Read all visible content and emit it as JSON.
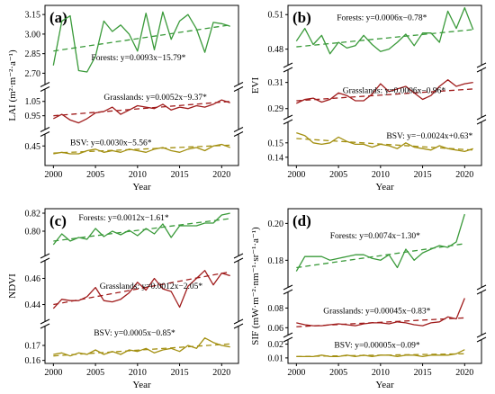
{
  "colors": {
    "forests": "#3a9a3a",
    "grasslands": "#a01c1c",
    "bsv": "#a38f10"
  },
  "chart_data": [
    {
      "type": "line",
      "panel": "(a)",
      "xlabel": "Year",
      "ylabel": "LAI (m²·m⁻²·a⁻¹)",
      "x": [
        2000,
        2001,
        2002,
        2003,
        2004,
        2005,
        2006,
        2007,
        2008,
        2009,
        2010,
        2011,
        2012,
        2013,
        2014,
        2015,
        2016,
        2017,
        2018,
        2019,
        2020,
        2021
      ],
      "xticks": [
        "2000",
        "2005",
        "2010",
        "2015",
        "2020"
      ],
      "segments": [
        {
          "ylim": [
            2.62,
            3.22
          ],
          "yticks": [
            "2.70",
            "2.85",
            "3.00",
            "3.15"
          ]
        },
        {
          "ylim": [
            0.86,
            1.13
          ],
          "yticks": [
            "0.95",
            "1.05"
          ]
        },
        {
          "ylim": [
            0.36,
            0.52
          ],
          "yticks": [
            "0.45"
          ]
        }
      ],
      "series": [
        {
          "name": "Forests",
          "segment": 0,
          "color_key": "forests",
          "equation": "Forests: y=0.0093x−15.79*",
          "label_year": 2004.5,
          "label_value": 2.8,
          "values": [
            2.76,
            3.1,
            3.14,
            2.72,
            2.71,
            2.83,
            3.1,
            3.02,
            3.07,
            3.0,
            2.87,
            3.16,
            2.88,
            3.17,
            2.96,
            3.1,
            3.15,
            3.04,
            2.86,
            3.09,
            3.08,
            3.06
          ],
          "trend": [
            2.87,
            3.07
          ]
        },
        {
          "name": "Grasslands",
          "segment": 1,
          "color_key": "grasslands",
          "equation": "Grasslands: y=0.0052x−9.37*",
          "label_year": 2006,
          "label_value": 1.06,
          "values": [
            0.93,
            0.96,
            0.92,
            0.9,
            0.93,
            0.97,
            0.98,
            1.01,
            0.96,
            0.99,
            1.02,
            1.01,
            1.0,
            1.03,
            0.99,
            1.01,
            1.0,
            1.02,
            1.01,
            1.03,
            1.06,
            1.04
          ],
          "trend": [
            0.95,
            1.05
          ]
        },
        {
          "name": "BSV",
          "segment": 2,
          "color_key": "bsv",
          "equation": "BSV: y=0.0030x−5.56*",
          "label_year": 2002,
          "label_value": 0.455,
          "values": [
            0.4,
            0.41,
            0.4,
            0.4,
            0.42,
            0.43,
            0.41,
            0.42,
            0.41,
            0.43,
            0.42,
            0.41,
            0.43,
            0.44,
            0.42,
            0.41,
            0.43,
            0.44,
            0.42,
            0.45,
            0.46,
            0.44
          ],
          "trend": [
            0.405,
            0.455
          ]
        }
      ]
    },
    {
      "type": "line",
      "panel": "(b)",
      "xlabel": "Year",
      "ylabel": "EVI",
      "x": [
        2000,
        2001,
        2002,
        2003,
        2004,
        2005,
        2006,
        2007,
        2008,
        2009,
        2010,
        2011,
        2012,
        2013,
        2014,
        2015,
        2016,
        2017,
        2018,
        2019,
        2020,
        2021
      ],
      "xticks": [
        "2000",
        "2005",
        "2010",
        "2015",
        "2020"
      ],
      "segments": [
        {
          "ylim": [
            0.468,
            0.518
          ],
          "yticks": [
            "0.48",
            "0.51"
          ]
        },
        {
          "ylim": [
            0.285,
            0.318
          ],
          "yticks": [
            "0.29",
            "0.31"
          ]
        },
        {
          "ylim": [
            0.138,
            0.163
          ],
          "yticks": [
            "0.14",
            "0.15"
          ]
        }
      ],
      "series": [
        {
          "name": "Forests",
          "segment": 0,
          "color_key": "forests",
          "equation": "Forests: y=0.0006x−0.78*",
          "label_year": 2004.8,
          "label_value": 0.505,
          "values": [
            0.487,
            0.498,
            0.484,
            0.492,
            0.476,
            0.486,
            0.481,
            0.483,
            0.492,
            0.484,
            0.478,
            0.48,
            0.486,
            0.493,
            0.483,
            0.494,
            0.494,
            0.486,
            0.513,
            0.498,
            0.516,
            0.497
          ],
          "trend": [
            0.482,
            0.497
          ]
        },
        {
          "name": "Grasslands",
          "segment": 1,
          "color_key": "grasslands",
          "equation": "Grasslands: y=0.0006x−0.96*",
          "label_year": 2005.5,
          "label_value": 0.302,
          "values": [
            0.294,
            0.297,
            0.298,
            0.295,
            0.297,
            0.302,
            0.3,
            0.296,
            0.296,
            0.301,
            0.309,
            0.303,
            0.305,
            0.307,
            0.302,
            0.297,
            0.3,
            0.307,
            0.312,
            0.307,
            0.309,
            0.31
          ],
          "trend": [
            0.296,
            0.305
          ]
        },
        {
          "name": "BSV",
          "segment": 2,
          "color_key": "bsv",
          "equation": "BSV: y=−0.0024x+0.63*",
          "label_year": 2010.7,
          "label_value": 0.153,
          "values": [
            0.157,
            0.155,
            0.15,
            0.149,
            0.15,
            0.154,
            0.151,
            0.149,
            0.149,
            0.147,
            0.149,
            0.148,
            0.146,
            0.15,
            0.147,
            0.146,
            0.145,
            0.148,
            0.146,
            0.145,
            0.144,
            0.146
          ],
          "trend": [
            0.153,
            0.145
          ]
        }
      ]
    },
    {
      "type": "line",
      "panel": "(c)",
      "xlabel": "Year",
      "ylabel": "NDVI",
      "x": [
        2000,
        2001,
        2002,
        2003,
        2004,
        2005,
        2006,
        2007,
        2008,
        2009,
        2010,
        2011,
        2012,
        2013,
        2014,
        2015,
        2016,
        2017,
        2018,
        2019,
        2020,
        2021
      ],
      "xticks": [
        "2000",
        "2005",
        "2010",
        "2015",
        "2020"
      ],
      "segments": [
        {
          "ylim": [
            0.775,
            0.825
          ],
          "yticks": [
            "0.80",
            "0.82"
          ]
        },
        {
          "ylim": [
            0.428,
            0.472
          ],
          "yticks": [
            "0.44",
            "0.46"
          ]
        },
        {
          "ylim": [
            0.158,
            0.182
          ],
          "yticks": [
            "0.16",
            "0.17"
          ]
        }
      ],
      "series": [
        {
          "name": "Forests",
          "segment": 0,
          "color_key": "forests",
          "equation": "Forests: y=0.0012x−1.61*",
          "label_year": 2003,
          "label_value": 0.812,
          "values": [
            0.785,
            0.797,
            0.789,
            0.793,
            0.791,
            0.803,
            0.794,
            0.8,
            0.796,
            0.801,
            0.795,
            0.803,
            0.797,
            0.808,
            0.793,
            0.806,
            0.806,
            0.806,
            0.809,
            0.809,
            0.818,
            0.82
          ],
          "trend": [
            0.789,
            0.814
          ]
        },
        {
          "name": "Grasslands",
          "segment": 1,
          "color_key": "grasslands",
          "equation": "Grasslands: y=0.0012x−2.05*",
          "label_year": 2005.5,
          "label_value": 0.452,
          "values": [
            0.437,
            0.444,
            0.443,
            0.443,
            0.446,
            0.453,
            0.443,
            0.442,
            0.444,
            0.449,
            0.457,
            0.451,
            0.46,
            0.452,
            0.45,
            0.438,
            0.454,
            0.46,
            0.466,
            0.455,
            0.464,
            0.462
          ],
          "trend": [
            0.44,
            0.465
          ]
        },
        {
          "name": "BSV",
          "segment": 2,
          "color_key": "bsv",
          "equation": "BSV: y=0.0005x−0.85*",
          "label_year": 2004.8,
          "label_value": 0.1765,
          "values": [
            0.164,
            0.165,
            0.163,
            0.165,
            0.164,
            0.167,
            0.164,
            0.166,
            0.164,
            0.167,
            0.166,
            0.168,
            0.165,
            0.167,
            0.168,
            0.166,
            0.17,
            0.168,
            0.175,
            0.172,
            0.17,
            0.169
          ],
          "trend": [
            0.163,
            0.171
          ]
        }
      ]
    },
    {
      "type": "line",
      "panel": "(d)",
      "xlabel": "Year",
      "ylabel": "SIF (mW·m⁻²·nm⁻¹·sr⁻¹·a⁻¹)",
      "x": [
        2000,
        2001,
        2002,
        2003,
        2004,
        2005,
        2006,
        2007,
        2008,
        2009,
        2010,
        2011,
        2012,
        2013,
        2014,
        2015,
        2016,
        2017,
        2018,
        2019,
        2020
      ],
      "xticks": [
        "2000",
        "2005",
        "2010",
        "2015",
        "2020"
      ],
      "segments": [
        {
          "ylim": [
            0.166,
            0.208
          ],
          "yticks": [
            "0.18",
            "0.20"
          ]
        },
        {
          "ylim": [
            0.053,
            0.095
          ],
          "yticks": [
            "0.06",
            "0.08"
          ]
        },
        {
          "ylim": [
            0.006,
            0.023
          ],
          "yticks": [
            "0.01",
            "0.02"
          ]
        }
      ],
      "series": [
        {
          "name": "Forests",
          "segment": 0,
          "color_key": "forests",
          "equation": "Forests: y=0.0074x−1.30*",
          "label_year": 2004,
          "label_value": 0.192,
          "values": [
            0.174,
            0.182,
            0.182,
            0.182,
            0.18,
            0.181,
            0.182,
            0.183,
            0.183,
            0.181,
            0.18,
            0.183,
            0.176,
            0.186,
            0.18,
            0.184,
            0.186,
            0.188,
            0.187,
            0.19,
            0.205
          ],
          "trend": [
            0.176,
            0.189
          ]
        },
        {
          "name": "Grasslands",
          "segment": 1,
          "color_key": "grasslands",
          "equation": "Grasslands: y=0.00045x−0.83*",
          "label_year": 2003.2,
          "label_value": 0.0745,
          "values": [
            0.065,
            0.063,
            0.062,
            0.062,
            0.063,
            0.064,
            0.063,
            0.062,
            0.064,
            0.065,
            0.065,
            0.064,
            0.066,
            0.065,
            0.063,
            0.062,
            0.065,
            0.066,
            0.071,
            0.069,
            0.09
          ],
          "trend": [
            0.061,
            0.07
          ]
        },
        {
          "name": "BSV",
          "segment": 2,
          "color_key": "bsv",
          "equation": "BSV: y=0.00005x−0.09*",
          "label_year": 2004.5,
          "label_value": 0.0175,
          "values": [
            0.011,
            0.011,
            0.011,
            0.012,
            0.011,
            0.011,
            0.012,
            0.011,
            0.012,
            0.011,
            0.012,
            0.012,
            0.011,
            0.012,
            0.012,
            0.011,
            0.012,
            0.012,
            0.012,
            0.013,
            0.016
          ],
          "trend": [
            0.011,
            0.013
          ]
        }
      ]
    }
  ]
}
